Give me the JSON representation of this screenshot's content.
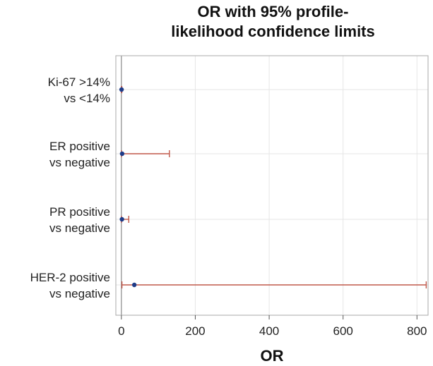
{
  "chart_data": {
    "type": "forest",
    "title_lines": [
      "OR with 95% profile-",
      "likelihood confidence limits"
    ],
    "xlabel": "OR",
    "xlim": [
      -15,
      830
    ],
    "xticks": [
      0,
      200,
      400,
      600,
      800
    ],
    "grid": true,
    "rows": [
      {
        "label_lines": [
          "Ki-67 >14%",
          "vs <14%"
        ],
        "or": 0.5,
        "lower": 0.1,
        "upper": 1.2
      },
      {
        "label_lines": [
          "ER positive",
          "vs negative"
        ],
        "or": 2,
        "lower": 0.3,
        "upper": 130
      },
      {
        "label_lines": [
          "PR positive",
          "vs negative"
        ],
        "or": 1.5,
        "lower": 0.2,
        "upper": 20
      },
      {
        "label_lines": [
          "HER-2 positive",
          "vs negative"
        ],
        "or": 35,
        "lower": 1.5,
        "upper": 825
      }
    ],
    "colors": {
      "point": "#1f3c88",
      "ci": "#c0584a",
      "grid": "#e6e6e6",
      "frame": "#a8a8a8",
      "ref_line": "#8c8c8c"
    }
  }
}
